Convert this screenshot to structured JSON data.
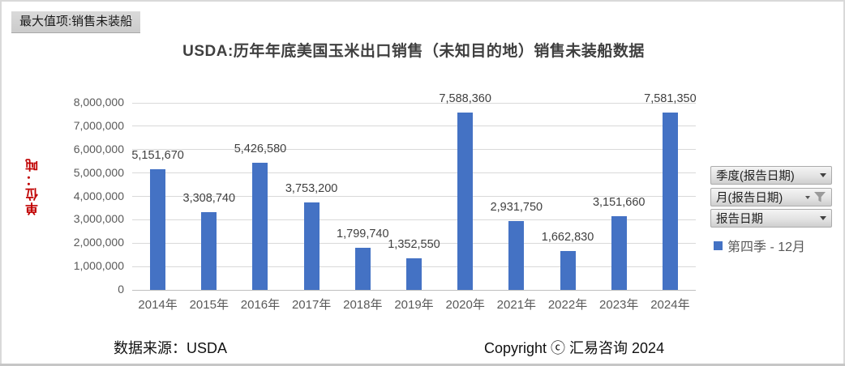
{
  "max_value_tag": "最大值项:销售未装船",
  "chart_data": {
    "type": "bar",
    "title": "USDA:历年年底美国玉米出口销售（未知目的地）销售未装船数据",
    "ylabel": "单位：吨",
    "xlabel": "",
    "categories": [
      "2014年",
      "2015年",
      "2016年",
      "2017年",
      "2018年",
      "2019年",
      "2020年",
      "2021年",
      "2022年",
      "2023年",
      "2024年"
    ],
    "values": [
      5151670,
      3308740,
      5426580,
      3753200,
      1799740,
      1352550,
      7588360,
      2931750,
      1662830,
      3151660,
      7581350
    ],
    "value_labels": [
      "5,151,670",
      "3,308,740",
      "5,426,580",
      "3,753,200",
      "1,799,740",
      "1,352,550",
      "7,588,360",
      "2,931,750",
      "1,662,830",
      "3,151,660",
      "7,581,350"
    ],
    "ylim": [
      0,
      8000000
    ],
    "ytick_step": 1000000,
    "ytick_labels": [
      "0",
      "1,000,000",
      "2,000,000",
      "3,000,000",
      "4,000,000",
      "5,000,000",
      "6,000,000",
      "7,000,000",
      "8,000,000"
    ],
    "grid": true,
    "legend_position": "right",
    "series": [
      {
        "name": "第四季 - 12月",
        "color": "#4472c4"
      }
    ]
  },
  "filters": [
    {
      "label": "季度(报告日期)",
      "filtered": false
    },
    {
      "label": "月(报告日期)",
      "filtered": true
    },
    {
      "label": "报告日期",
      "filtered": false
    }
  ],
  "legend": {
    "label": "第四季 - 12月",
    "color": "#4472c4"
  },
  "footer": {
    "source": "数据来源：USDA",
    "copyright": "Copyright ⓒ 汇易咨询 2024"
  },
  "colors": {
    "bar": "#4472c4",
    "gridline": "#d9d9d9",
    "axis_text": "#595959",
    "data_label": "#404040",
    "y_axis_title": "#c00000"
  }
}
